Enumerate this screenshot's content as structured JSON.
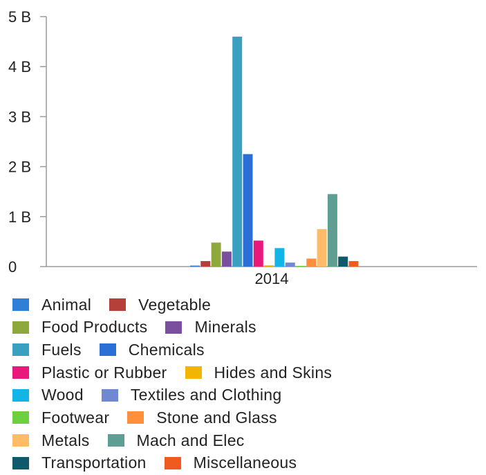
{
  "chart_data": {
    "type": "bar",
    "categories": [
      "2014"
    ],
    "y_ticks": [
      "0",
      "1 B",
      "2 B",
      "3 B",
      "4 B",
      "5 B"
    ],
    "ylim": [
      0,
      5000000000
    ],
    "grid": false,
    "legend_position": "bottom",
    "series": [
      {
        "name": "Animal",
        "color": "#2f7ed8",
        "values": [
          20000000
        ]
      },
      {
        "name": "Vegetable",
        "color": "#b5403a",
        "values": [
          110000000
        ]
      },
      {
        "name": "Food Products",
        "color": "#8fa83c",
        "values": [
          480000000
        ]
      },
      {
        "name": "Minerals",
        "color": "#7a4f9e",
        "values": [
          300000000
        ]
      },
      {
        "name": "Fuels",
        "color": "#3aa0c0",
        "values": [
          4600000000
        ]
      },
      {
        "name": "Chemicals",
        "color": "#2b6fd6",
        "values": [
          2250000000
        ]
      },
      {
        "name": "Plastic or Rubber",
        "color": "#e8197a",
        "values": [
          520000000
        ]
      },
      {
        "name": "Hides and Skins",
        "color": "#f2b500",
        "values": [
          25000000
        ]
      },
      {
        "name": "Wood",
        "color": "#12b5e6",
        "values": [
          370000000
        ]
      },
      {
        "name": "Textiles and Clothing",
        "color": "#7087d4",
        "values": [
          80000000
        ]
      },
      {
        "name": "Footwear",
        "color": "#6dd13f",
        "values": [
          15000000
        ]
      },
      {
        "name": "Stone and Glass",
        "color": "#ff8f3a",
        "values": [
          160000000
        ]
      },
      {
        "name": "Metals",
        "color": "#ffbb66",
        "values": [
          750000000
        ]
      },
      {
        "name": "Mach and Elec",
        "color": "#5f9e92",
        "values": [
          1450000000
        ]
      },
      {
        "name": "Transportation",
        "color": "#10596a",
        "values": [
          200000000
        ]
      },
      {
        "name": "Miscellaneous",
        "color": "#f05a1e",
        "values": [
          110000000
        ]
      }
    ]
  }
}
